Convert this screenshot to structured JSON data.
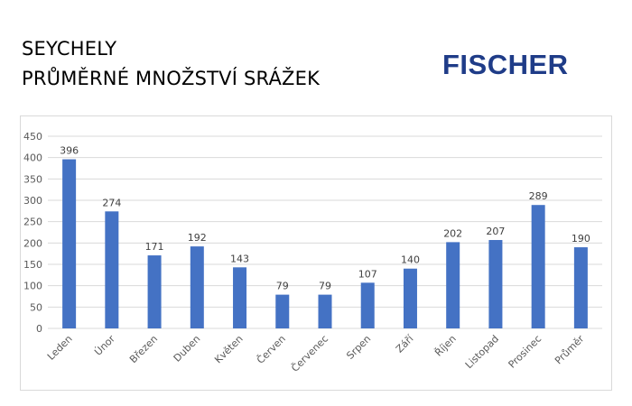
{
  "title": {
    "line1": "SEYCHELY",
    "line2": "PRŮMĚRNÉ MNOŽSTVÍ SRÁŽEK"
  },
  "logo": {
    "text": "FISCHER",
    "color": "#1f3c88"
  },
  "colors": {
    "bar": "#4472c4",
    "grid": "#d9d9d9",
    "axis_text": "#595959"
  },
  "chart_data": {
    "type": "bar",
    "title": "",
    "xlabel": "",
    "ylabel": "",
    "categories": [
      "Leden",
      "Únor",
      "Březen",
      "Duben",
      "Květen",
      "Červen",
      "Červenec",
      "Srpen",
      "Září",
      "Říjen",
      "Listopad",
      "Prosinec",
      "Průměr"
    ],
    "values": [
      396,
      274,
      171,
      192,
      143,
      79,
      79,
      107,
      140,
      202,
      207,
      289,
      190
    ],
    "ylim": [
      0,
      450
    ],
    "yticks": [
      0,
      50,
      100,
      150,
      200,
      250,
      300,
      350,
      400,
      450
    ],
    "grid": true,
    "data_labels": true,
    "legend": "none"
  }
}
